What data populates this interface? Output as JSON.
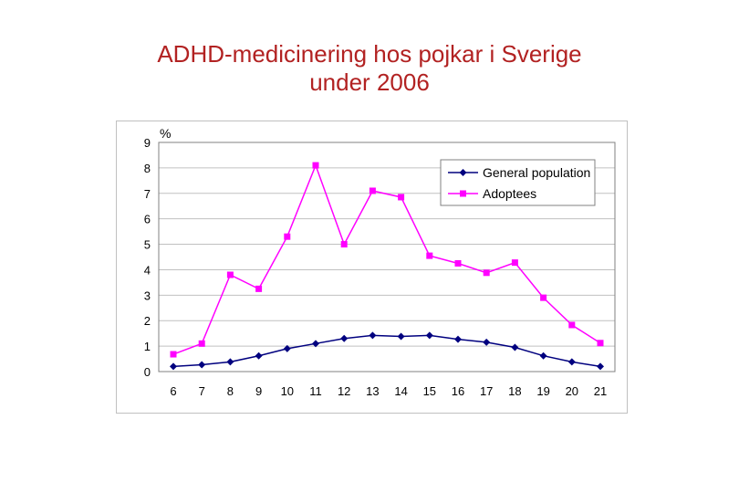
{
  "slide": {
    "title_line1": "ADHD-medicinering hos pojkar i Sverige",
    "title_line2": "under 2006"
  },
  "chart_data": {
    "type": "line",
    "title": "",
    "xlabel": "",
    "ylabel": "%",
    "ylim": [
      0,
      9
    ],
    "yticks": [
      0,
      1,
      2,
      3,
      4,
      5,
      6,
      7,
      8,
      9
    ],
    "grid": true,
    "legend_position": "top-right",
    "categories": [
      "6",
      "7",
      "8",
      "9",
      "10",
      "11",
      "12",
      "13",
      "14",
      "15",
      "16",
      "17",
      "18",
      "19",
      "20",
      "21"
    ],
    "series": [
      {
        "name": "General population",
        "color": "#00007f",
        "marker": "diamond",
        "values": [
          0.2,
          0.27,
          0.38,
          0.62,
          0.9,
          1.1,
          1.3,
          1.42,
          1.38,
          1.42,
          1.27,
          1.15,
          0.95,
          0.62,
          0.38,
          0.2
        ]
      },
      {
        "name": "Adoptees",
        "color": "#ff00ff",
        "marker": "square",
        "values": [
          0.68,
          1.1,
          3.8,
          3.25,
          5.3,
          8.1,
          5.0,
          7.1,
          6.85,
          4.55,
          4.25,
          3.88,
          4.28,
          2.9,
          1.83,
          1.12
        ]
      }
    ]
  }
}
